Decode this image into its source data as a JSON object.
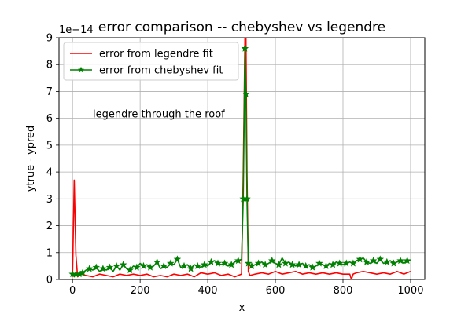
{
  "chart_data": {
    "type": "line",
    "title": "error comparison -- chebyshev vs legendre",
    "xlabel": "x",
    "ylabel": "ytrue - ypred",
    "offset_text": "1e−14",
    "xlim": [
      -40,
      1042
    ],
    "ylim": [
      0,
      9
    ],
    "grid": true,
    "legend_position": "top-left",
    "xticks": [
      0,
      200,
      400,
      600,
      800,
      1000
    ],
    "yticks": [
      0,
      1,
      2,
      3,
      4,
      5,
      6,
      7,
      8,
      9
    ],
    "annotations": [
      {
        "text": "legendre through the roof",
        "x": 60,
        "y": 6.15
      }
    ],
    "series": [
      {
        "name": "error from legendre fit",
        "color": "#ff0000",
        "marker": "none",
        "x": [
          0,
          5,
          10,
          15,
          25,
          40,
          60,
          80,
          100,
          120,
          140,
          160,
          180,
          200,
          220,
          240,
          260,
          280,
          300,
          320,
          340,
          360,
          380,
          400,
          420,
          440,
          460,
          480,
          500,
          505,
          510,
          513,
          516,
          520,
          525,
          540,
          560,
          580,
          600,
          620,
          640,
          660,
          680,
          700,
          720,
          740,
          760,
          780,
          800,
          820,
          825,
          830,
          840,
          860,
          880,
          900,
          920,
          940,
          960,
          980,
          1000
        ],
        "y": [
          0.1,
          3.7,
          0.9,
          0.1,
          0.2,
          0.15,
          0.1,
          0.2,
          0.15,
          0.1,
          0.2,
          0.15,
          0.2,
          0.15,
          0.2,
          0.1,
          0.15,
          0.1,
          0.2,
          0.15,
          0.2,
          0.1,
          0.25,
          0.2,
          0.25,
          0.15,
          0.2,
          0.1,
          0.2,
          4.0,
          9.0,
          9.0,
          4.0,
          0.3,
          0.15,
          0.2,
          0.25,
          0.2,
          0.3,
          0.2,
          0.25,
          0.3,
          0.2,
          0.25,
          0.2,
          0.25,
          0.2,
          0.25,
          0.2,
          0.2,
          0.0,
          0.2,
          0.25,
          0.3,
          0.25,
          0.2,
          0.25,
          0.2,
          0.3,
          0.2,
          0.3
        ]
      },
      {
        "name": "error from chebyshev fit",
        "color": "#008000",
        "marker": "star",
        "x": [
          0,
          5,
          10,
          15,
          20,
          25,
          30,
          40,
          50,
          60,
          70,
          80,
          90,
          100,
          110,
          120,
          130,
          140,
          150,
          160,
          170,
          180,
          190,
          200,
          210,
          220,
          230,
          240,
          250,
          260,
          270,
          280,
          290,
          300,
          310,
          320,
          330,
          340,
          350,
          360,
          370,
          380,
          390,
          400,
          410,
          420,
          430,
          440,
          450,
          460,
          470,
          480,
          490,
          500,
          505,
          510,
          513,
          516,
          520,
          525,
          530,
          540,
          550,
          560,
          570,
          580,
          590,
          600,
          610,
          620,
          630,
          640,
          650,
          660,
          670,
          680,
          690,
          700,
          710,
          720,
          730,
          740,
          750,
          760,
          770,
          780,
          790,
          800,
          810,
          820,
          830,
          840,
          850,
          860,
          870,
          880,
          890,
          900,
          910,
          920,
          930,
          940,
          950,
          960,
          970,
          980,
          990,
          1000
        ],
        "y": [
          0.2,
          0.1,
          0.2,
          0.15,
          0.2,
          0.3,
          0.25,
          0.35,
          0.4,
          0.35,
          0.45,
          0.3,
          0.4,
          0.35,
          0.45,
          0.3,
          0.5,
          0.35,
          0.55,
          0.4,
          0.35,
          0.5,
          0.45,
          0.6,
          0.5,
          0.55,
          0.45,
          0.5,
          0.65,
          0.4,
          0.5,
          0.45,
          0.6,
          0.55,
          0.75,
          0.45,
          0.5,
          0.55,
          0.4,
          0.55,
          0.5,
          0.45,
          0.55,
          0.5,
          0.65,
          0.7,
          0.6,
          0.55,
          0.6,
          0.5,
          0.55,
          0.65,
          0.7,
          0.75,
          3.0,
          8.6,
          6.9,
          3.0,
          0.6,
          0.55,
          0.5,
          0.55,
          0.6,
          0.65,
          0.55,
          0.6,
          0.7,
          0.6,
          0.55,
          0.8,
          0.6,
          0.65,
          0.55,
          0.5,
          0.55,
          0.6,
          0.5,
          0.55,
          0.45,
          0.5,
          0.6,
          0.55,
          0.5,
          0.6,
          0.55,
          0.65,
          0.6,
          0.55,
          0.6,
          0.65,
          0.6,
          0.7,
          0.75,
          0.8,
          0.65,
          0.6,
          0.7,
          0.6,
          0.75,
          0.6,
          0.65,
          0.7,
          0.6,
          0.65,
          0.7,
          0.6,
          0.7,
          0.7
        ]
      }
    ]
  }
}
